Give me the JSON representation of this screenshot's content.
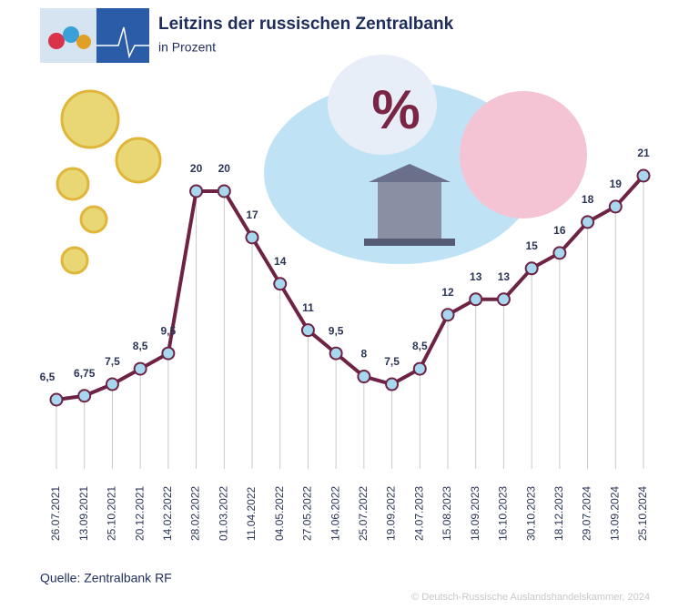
{
  "chart_data": {
    "type": "line",
    "title": "Leitzins der russischen Zentralbank",
    "subtitle": "in Prozent",
    "source": "Quelle: Zentralbank RF",
    "copyright": "© Deutsch-Russische Auslandshandelskammer, 2024",
    "categories": [
      "26.07.2021",
      "13.09.2021",
      "25.10.2021",
      "20.12.2021",
      "14.02.2022",
      "28.02.2022",
      "01.03.2022",
      "11.04.2022",
      "04.05.2022",
      "27.05.2022",
      "14.06.2022",
      "25.07.2022",
      "19.09.2022",
      "24.07.2023",
      "15.08.2023",
      "18.09.2023",
      "16.10.2023",
      "30.10.2023",
      "18.12.2023",
      "29.07.2024",
      "13.09.2024",
      "25.10.2024"
    ],
    "series": [
      {
        "name": "Leitzins",
        "color": "#6e2344",
        "marker_color": "#a8d8ef",
        "values": [
          6.5,
          6.75,
          7.5,
          8.5,
          9.5,
          20,
          20,
          17,
          14,
          11,
          9.5,
          8,
          7.5,
          8.5,
          12,
          13,
          13,
          15,
          16,
          18,
          19,
          21
        ],
        "value_labels": [
          "6,5",
          "6,75",
          "7,5",
          "8,5",
          "9,5",
          "20",
          "20",
          "17",
          "14",
          "11",
          "9,5",
          "8",
          "7,5",
          "8,5",
          "12",
          "13",
          "13",
          "15",
          "16",
          "18",
          "19",
          "21"
        ]
      }
    ]
  }
}
